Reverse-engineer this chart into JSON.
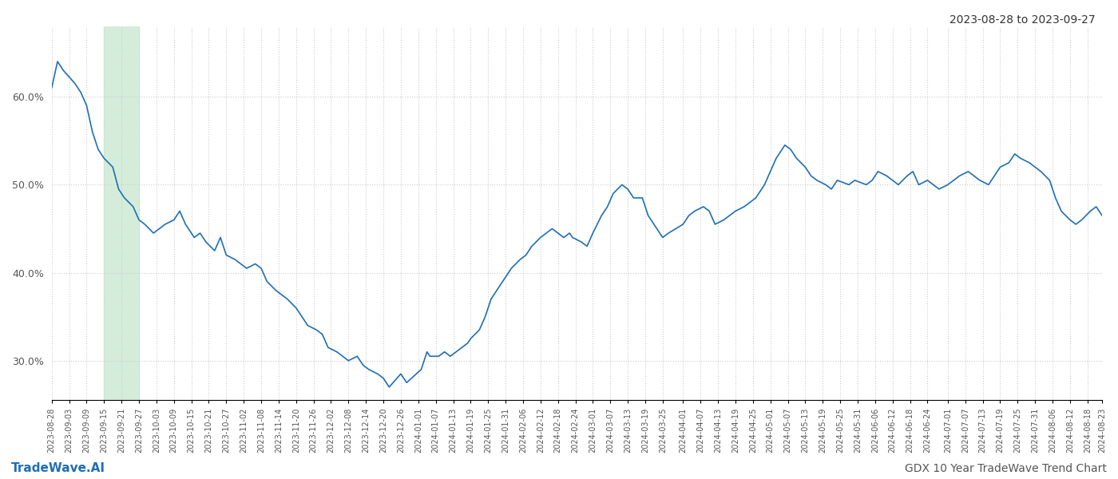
{
  "title_right": "2023-08-28 to 2023-09-27",
  "footer_left": "TradeWave.AI",
  "footer_right": "GDX 10 Year TradeWave Trend Chart",
  "highlight_start": "2023-09-15",
  "highlight_end": "2023-09-27",
  "line_color": "#1f6eb5",
  "highlight_color": "#d4edda",
  "background_color": "#ffffff",
  "grid_color": "#cccccc",
  "yticks": [
    30.0,
    40.0,
    50.0,
    60.0
  ],
  "dates": [
    "2023-08-28",
    "2023-08-30",
    "2023-09-01",
    "2023-09-05",
    "2023-09-07",
    "2023-09-09",
    "2023-09-11",
    "2023-09-13",
    "2023-09-15",
    "2023-09-18",
    "2023-09-20",
    "2023-09-22",
    "2023-09-25",
    "2023-09-27",
    "2023-09-29",
    "2023-10-02",
    "2023-10-04",
    "2023-10-06",
    "2023-10-09",
    "2023-10-11",
    "2023-10-13",
    "2023-10-16",
    "2023-10-18",
    "2023-10-20",
    "2023-10-23",
    "2023-10-25",
    "2023-10-27",
    "2023-10-30",
    "2023-11-01",
    "2023-11-03",
    "2023-11-06",
    "2023-11-08",
    "2023-11-10",
    "2023-11-13",
    "2023-11-15",
    "2023-11-17",
    "2023-11-20",
    "2023-11-22",
    "2023-11-24",
    "2023-11-27",
    "2023-11-29",
    "2023-12-01",
    "2023-12-04",
    "2023-12-06",
    "2023-12-08",
    "2023-12-11",
    "2023-12-13",
    "2023-12-15",
    "2023-12-18",
    "2023-12-20",
    "2023-12-22",
    "2023-12-26",
    "2023-12-28",
    "2024-01-02",
    "2024-01-04",
    "2024-01-05",
    "2024-01-08",
    "2024-01-10",
    "2024-01-12",
    "2024-01-16",
    "2024-01-18",
    "2024-01-19",
    "2024-01-22",
    "2024-01-24",
    "2024-01-26",
    "2024-01-29",
    "2024-01-31",
    "2024-02-02",
    "2024-02-05",
    "2024-02-07",
    "2024-02-09",
    "2024-02-12",
    "2024-02-14",
    "2024-02-16",
    "2024-02-20",
    "2024-02-22",
    "2024-02-23",
    "2024-02-26",
    "2024-02-28",
    "2024-03-01",
    "2024-03-04",
    "2024-03-06",
    "2024-03-08",
    "2024-03-11",
    "2024-03-13",
    "2024-03-15",
    "2024-03-18",
    "2024-03-20",
    "2024-03-22",
    "2024-03-25",
    "2024-03-27",
    "2024-04-01",
    "2024-04-03",
    "2024-04-05",
    "2024-04-08",
    "2024-04-10",
    "2024-04-12",
    "2024-04-15",
    "2024-04-17",
    "2024-04-19",
    "2024-04-22",
    "2024-04-24",
    "2024-04-26",
    "2024-04-29",
    "2024-05-01",
    "2024-05-03",
    "2024-05-06",
    "2024-05-08",
    "2024-05-10",
    "2024-05-13",
    "2024-05-15",
    "2024-05-17",
    "2024-05-20",
    "2024-05-22",
    "2024-05-24",
    "2024-05-28",
    "2024-05-30",
    "2024-06-03",
    "2024-06-05",
    "2024-06-07",
    "2024-06-10",
    "2024-06-12",
    "2024-06-14",
    "2024-06-17",
    "2024-06-19",
    "2024-06-21",
    "2024-06-24",
    "2024-06-26",
    "2024-06-28",
    "2024-07-01",
    "2024-07-03",
    "2024-07-05",
    "2024-07-08",
    "2024-07-10",
    "2024-07-12",
    "2024-07-15",
    "2024-07-17",
    "2024-07-19",
    "2024-07-22",
    "2024-07-24",
    "2024-07-26",
    "2024-07-29",
    "2024-07-31",
    "2024-08-02",
    "2024-08-05",
    "2024-08-07",
    "2024-08-09",
    "2024-08-12",
    "2024-08-14",
    "2024-08-16",
    "2024-08-19",
    "2024-08-21",
    "2024-08-23"
  ],
  "values": [
    61.0,
    64.0,
    63.0,
    61.5,
    60.5,
    59.0,
    56.0,
    54.0,
    53.0,
    52.0,
    49.5,
    48.5,
    47.5,
    46.0,
    45.5,
    44.5,
    45.0,
    45.5,
    46.0,
    47.0,
    45.5,
    44.0,
    44.5,
    43.5,
    42.5,
    44.0,
    42.0,
    41.5,
    41.0,
    40.5,
    41.0,
    40.5,
    39.0,
    38.0,
    37.5,
    37.0,
    36.0,
    35.0,
    34.0,
    33.5,
    33.0,
    31.5,
    31.0,
    30.5,
    30.0,
    30.5,
    29.5,
    29.0,
    28.5,
    28.0,
    27.0,
    28.5,
    27.5,
    29.0,
    31.0,
    30.5,
    30.5,
    31.0,
    30.5,
    31.5,
    32.0,
    32.5,
    33.5,
    35.0,
    37.0,
    38.5,
    39.5,
    40.5,
    41.5,
    42.0,
    43.0,
    44.0,
    44.5,
    45.0,
    44.0,
    44.5,
    44.0,
    43.5,
    43.0,
    44.5,
    46.5,
    47.5,
    49.0,
    50.0,
    49.5,
    48.5,
    48.5,
    46.5,
    45.5,
    44.0,
    44.5,
    45.5,
    46.5,
    47.0,
    47.5,
    47.0,
    45.5,
    46.0,
    46.5,
    47.0,
    47.5,
    48.0,
    48.5,
    50.0,
    51.5,
    53.0,
    54.5,
    54.0,
    53.0,
    52.0,
    51.0,
    50.5,
    50.0,
    49.5,
    50.5,
    50.0,
    50.5,
    50.0,
    50.5,
    51.5,
    51.0,
    50.5,
    50.0,
    51.0,
    51.5,
    50.0,
    50.5,
    50.0,
    49.5,
    50.0,
    50.5,
    51.0,
    51.5,
    51.0,
    50.5,
    50.0,
    51.0,
    52.0,
    52.5,
    53.5,
    53.0,
    52.5,
    52.0,
    51.5,
    50.5,
    48.5,
    47.0,
    46.0,
    45.5,
    46.0,
    47.0,
    47.5,
    46.5
  ],
  "xtick_labels": [
    "2023-08-28",
    "2023-09-03",
    "2023-09-09",
    "2023-09-15",
    "2023-09-21",
    "2023-09-27",
    "2023-10-03",
    "2023-10-09",
    "2023-10-15",
    "2023-10-21",
    "2023-10-27",
    "2023-11-02",
    "2023-11-08",
    "2023-11-14",
    "2023-11-20",
    "2023-11-26",
    "2023-12-02",
    "2023-12-08",
    "2023-12-14",
    "2023-12-20",
    "2023-12-26",
    "2024-01-01",
    "2024-01-07",
    "2024-01-13",
    "2024-01-19",
    "2024-01-25",
    "2024-01-31",
    "2024-02-06",
    "2024-02-12",
    "2024-02-18",
    "2024-02-24",
    "2024-03-01",
    "2024-03-07",
    "2024-03-13",
    "2024-03-19",
    "2024-03-25",
    "2024-04-01",
    "2024-04-07",
    "2024-04-13",
    "2024-04-19",
    "2024-04-25",
    "2024-05-01",
    "2024-05-07",
    "2024-05-13",
    "2024-05-19",
    "2024-05-25",
    "2024-05-31",
    "2024-06-06",
    "2024-06-12",
    "2024-06-18",
    "2024-06-24",
    "2024-07-01",
    "2024-07-07",
    "2024-07-13",
    "2024-07-19",
    "2024-07-25",
    "2024-07-31",
    "2024-08-06",
    "2024-08-12",
    "2024-08-18",
    "2024-08-23"
  ]
}
